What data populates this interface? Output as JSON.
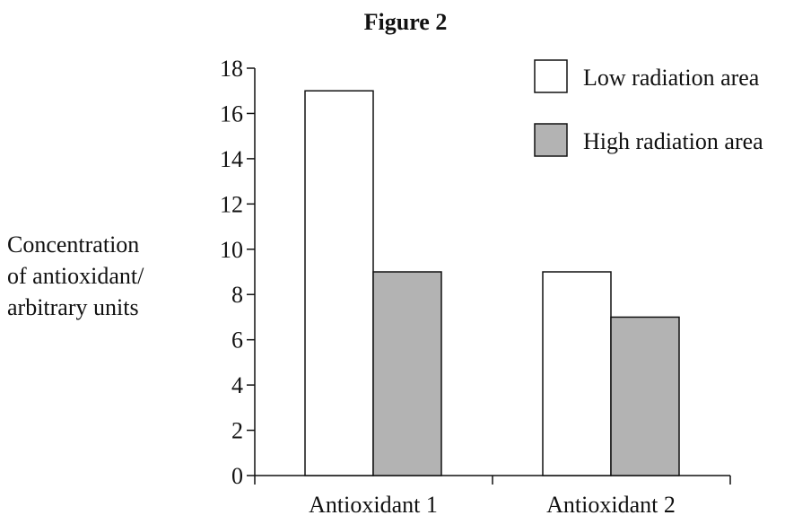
{
  "chart_data": {
    "type": "bar",
    "title": "Figure 2",
    "ylabel": [
      "Concentration",
      "of antioxidant/",
      "arbitrary units"
    ],
    "xlabel": "",
    "categories": [
      "Antioxidant 1",
      "Antioxidant 2"
    ],
    "ylim": [
      0,
      18
    ],
    "yticks": [
      0,
      2,
      4,
      6,
      8,
      10,
      12,
      14,
      16,
      18
    ],
    "series": [
      {
        "name": "Low radiation area",
        "values": [
          17,
          9
        ],
        "color": "#ffffff"
      },
      {
        "name": "High radiation area",
        "values": [
          9,
          7
        ],
        "color": "#b3b3b3"
      }
    ],
    "grid": false,
    "legend": "top-right"
  }
}
